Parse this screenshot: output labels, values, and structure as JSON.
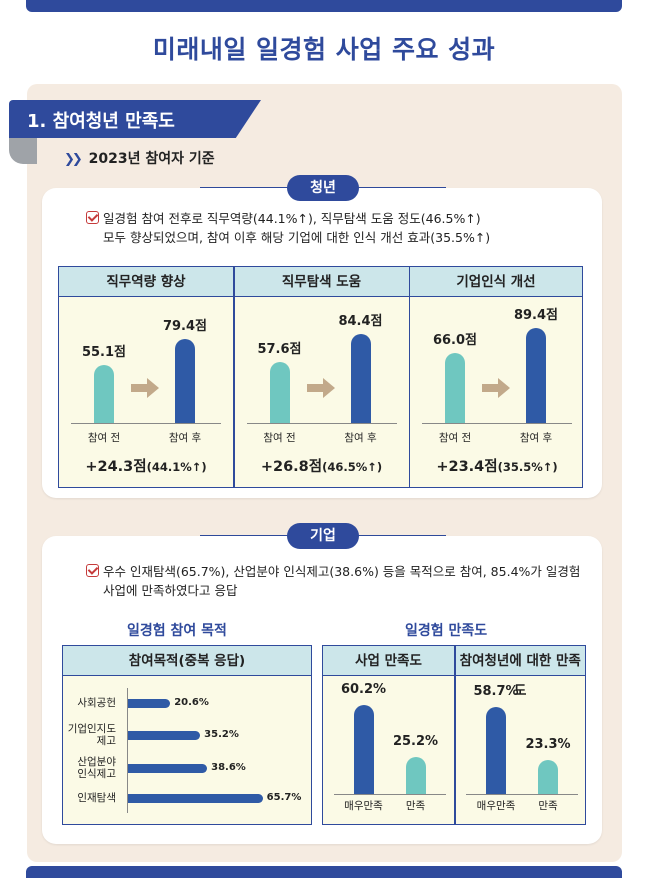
{
  "title": "미래내일 일경험 사업 주요 성과",
  "section1": {
    "heading": "1. 참여청년 만족도",
    "sub": "2023년 참여자 기준"
  },
  "youth": {
    "pill": "청년",
    "line1": "일경험 참여 전후로 직무역량(44.1%↑), 직무탐색 도움 정도(46.5%↑)",
    "line2": "모두 향상되었으며, 참여 이후 해당 기업에 대한 인식 개선 효과(35.5%↑)",
    "before_label": "참여 전",
    "after_label": "참여 후"
  },
  "chart_data": [
    {
      "type": "bar",
      "title": "직무역량 향상",
      "categories": [
        "참여 전",
        "참여 후"
      ],
      "values": [
        55.1,
        79.4
      ],
      "value_labels": [
        "55.1점",
        "79.4점"
      ],
      "change": "+24.3점",
      "change_pct": "(44.1%↑)"
    },
    {
      "type": "bar",
      "title": "직무탐색 도움",
      "categories": [
        "참여 전",
        "참여 후"
      ],
      "values": [
        57.6,
        84.4
      ],
      "value_labels": [
        "57.6점",
        "84.4점"
      ],
      "change": "+26.8점",
      "change_pct": "(46.5%↑)"
    },
    {
      "type": "bar",
      "title": "기업인식 개선",
      "categories": [
        "참여 전",
        "참여 후"
      ],
      "values": [
        66.0,
        89.4
      ],
      "value_labels": [
        "66.0점",
        "89.4점"
      ],
      "change": "+23.4점",
      "change_pct": "(35.5%↑)"
    },
    {
      "type": "bar",
      "orientation": "horizontal",
      "title": "참여목적(중복 응답)",
      "categories": [
        "사회공헌",
        "기업인지도 제고",
        "산업분야 인식제고",
        "인재탐색"
      ],
      "values": [
        20.6,
        35.2,
        38.6,
        65.7
      ],
      "value_labels": [
        "20.6%",
        "35.2%",
        "38.6%",
        "65.7%"
      ]
    },
    {
      "type": "bar",
      "title": "사업 만족도",
      "categories": [
        "매우만족",
        "만족"
      ],
      "values": [
        60.2,
        25.2
      ],
      "value_labels": [
        "60.2%",
        "25.2%"
      ]
    },
    {
      "type": "bar",
      "title": "참여청년에 대한 만족도",
      "categories": [
        "매우만족",
        "만족"
      ],
      "values": [
        58.7,
        23.3
      ],
      "value_labels": [
        "58.7%",
        "23.3%"
      ]
    }
  ],
  "company": {
    "pill": "기업",
    "line1": "우수 인재탐색(65.7%), 산업분야 인식제고(38.6%) 등을 목적으로 참여, 85.4%가 일경험",
    "line2": "사업에 만족하였다고 응답",
    "purpose_title": "일경험 참여 목적",
    "satisfaction_title": "일경험 만족도",
    "purpose_labels": [
      [
        "사회공헌"
      ],
      [
        "기업인지도",
        "제고"
      ],
      [
        "산업분야",
        "인식제고"
      ],
      [
        "인재탐색"
      ]
    ]
  },
  "colors": {
    "brand": "#2f4a9c",
    "teal": "#6fc7c0",
    "blue": "#2f5aa6",
    "panel": "#f5ebe1",
    "box": "#fbfae6",
    "head": "#cce6ea"
  }
}
